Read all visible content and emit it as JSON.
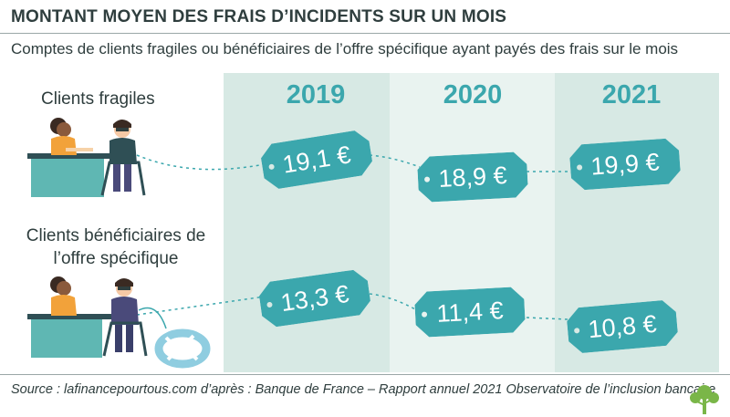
{
  "title": "MONTANT MOYEN DES FRAIS D’INCIDENTS SUR UN MOIS",
  "subtitle": "Comptes de clients fragiles ou bénéficiaires de l’offre spécifique ayant payés des frais sur le mois",
  "source": "Source : lafinancepourtous.com d’après : Banque de France – Rapport annuel 2021 Observatoire de l’inclusion bancaire",
  "colors": {
    "accent": "#3ba7ad",
    "column_dark": "#d7e9e4",
    "column_light": "#e9f3f0",
    "text": "#2f3e3e"
  },
  "chart_data": {
    "type": "table",
    "title": "MONTANT MOYEN DES FRAIS D’INCIDENTS SUR UN MOIS",
    "subtitle": "Comptes de clients fragiles ou bénéficiaires de l’offre spécifique ayant payés des frais sur le mois",
    "categories": [
      "2019",
      "2020",
      "2021"
    ],
    "unit": "€",
    "series": [
      {
        "name": "Clients fragiles",
        "values": [
          19.1,
          18.9,
          19.9
        ],
        "labels": [
          "19,1 €",
          "18,9 €",
          "19,9 €"
        ]
      },
      {
        "name": "Clients bénéficiaires de l’offre spécifique",
        "name_lines": [
          "Clients bénéficiaires de",
          "l’offre spécifique"
        ],
        "values": [
          13.3,
          11.4,
          10.8
        ],
        "labels": [
          "13,3 €",
          "11,4 €",
          "10,8 €"
        ]
      }
    ]
  }
}
